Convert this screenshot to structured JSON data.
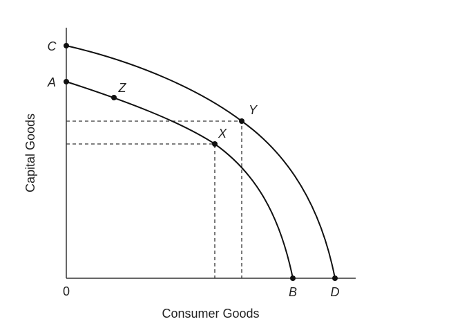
{
  "axes": {
    "x_label": "Consumer Goods",
    "y_label": "Capital Goods",
    "origin": "0"
  },
  "points": [
    {
      "label": "C"
    },
    {
      "label": "A"
    },
    {
      "label": "Z"
    },
    {
      "label": "Y"
    },
    {
      "label": "X"
    },
    {
      "label": "B"
    },
    {
      "label": "D"
    }
  ]
}
